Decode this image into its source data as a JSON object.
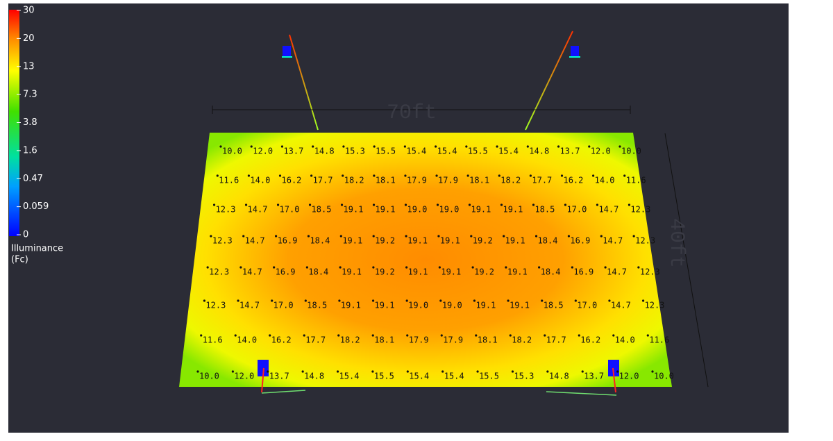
{
  "legend": {
    "ticks": [
      "30",
      "20",
      "13",
      "7.3",
      "3.8",
      "1.6",
      "0.47",
      "0.059",
      "0"
    ],
    "label": [
      "Illuminance",
      "(Fc)"
    ]
  },
  "dimensions": {
    "width": "70ft",
    "depth": "40ft"
  },
  "grid": {
    "rows": [
      [
        "10.0",
        "12.0",
        "13.7",
        "14.8",
        "15.3",
        "15.5",
        "15.4",
        "15.4",
        "15.5",
        "15.4",
        "14.8",
        "13.7",
        "12.0",
        "10.0"
      ],
      [
        "11.6",
        "14.0",
        "16.2",
        "17.7",
        "18.2",
        "18.1",
        "17.9",
        "17.9",
        "18.1",
        "18.2",
        "17.7",
        "16.2",
        "14.0",
        "11.6"
      ],
      [
        "12.3",
        "14.7",
        "17.0",
        "18.5",
        "19.1",
        "19.1",
        "19.0",
        "19.0",
        "19.1",
        "19.1",
        "18.5",
        "17.0",
        "14.7",
        "12.3"
      ],
      [
        "12.3",
        "14.7",
        "16.9",
        "18.4",
        "19.1",
        "19.2",
        "19.1",
        "19.1",
        "19.2",
        "19.1",
        "18.4",
        "16.9",
        "14.7",
        "12.3"
      ],
      [
        "12.3",
        "14.7",
        "16.9",
        "18.4",
        "19.1",
        "19.2",
        "19.1",
        "19.1",
        "19.2",
        "19.1",
        "18.4",
        "16.9",
        "14.7",
        "12.3"
      ],
      [
        "12.3",
        "14.7",
        "17.0",
        "18.5",
        "19.1",
        "19.1",
        "19.0",
        "19.0",
        "19.1",
        "19.1",
        "18.5",
        "17.0",
        "14.7",
        "12.3"
      ],
      [
        "11.6",
        "14.0",
        "16.2",
        "17.7",
        "18.2",
        "18.1",
        "17.9",
        "17.9",
        "18.1",
        "18.2",
        "17.7",
        "16.2",
        "14.0",
        "11.6"
      ],
      [
        "10.0",
        "12.0",
        "13.7",
        "14.8",
        "15.4",
        "15.5",
        "15.4",
        "15.4",
        "15.5",
        "15.3",
        "14.8",
        "13.7",
        "12.0",
        "10.0"
      ]
    ]
  }
}
